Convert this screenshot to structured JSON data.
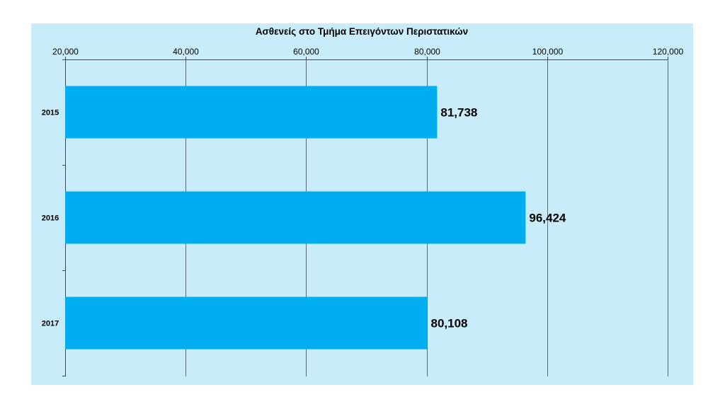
{
  "chart_data": {
    "type": "bar",
    "orientation": "horizontal",
    "title": "Ασθενείς στο Τμήμα Επειγόντων Περιστατικών",
    "categories": [
      "2015",
      "2016",
      "2017"
    ],
    "values": [
      81738,
      96424,
      80108
    ],
    "value_labels": [
      "81,738",
      "96,424",
      "80,108"
    ],
    "xlim": [
      20000,
      120000
    ],
    "x_ticks": [
      20000,
      40000,
      60000,
      80000,
      100000,
      120000
    ],
    "x_tick_labels": [
      "20,000",
      "40,000",
      "60,000",
      "80,000",
      "100,000",
      "120,000"
    ],
    "x_axis_position": "top",
    "grid": true,
    "legend": "none",
    "colors": {
      "bar": "#00aeef",
      "background": "#c9ecfa",
      "grid": "#5a6a78"
    }
  }
}
